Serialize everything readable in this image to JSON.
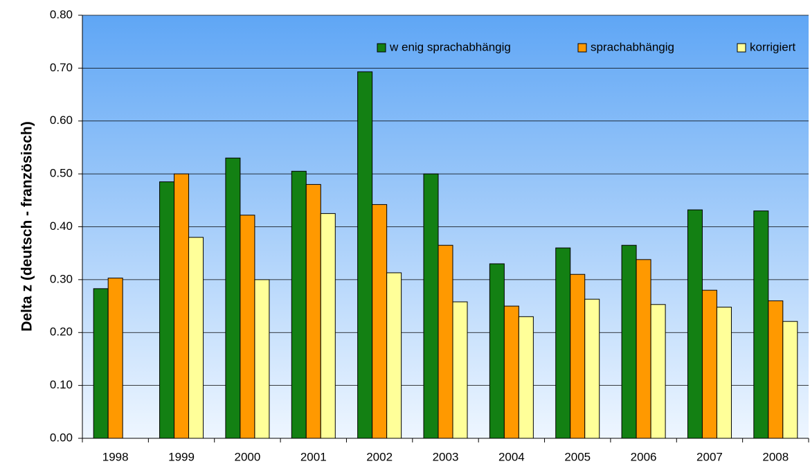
{
  "chart_data": {
    "type": "bar",
    "y_label": "Delta z (deutsch - französisch)",
    "categories": [
      "1998",
      "1999",
      "2000",
      "2001",
      "2002",
      "2003",
      "2004",
      "2005",
      "2006",
      "2007",
      "2008"
    ],
    "series": [
      {
        "name": "w enig sprachabhängig",
        "color": "#138013",
        "values": [
          0.283,
          0.485,
          0.53,
          0.505,
          0.693,
          0.5,
          0.33,
          0.36,
          0.365,
          0.432,
          0.43
        ]
      },
      {
        "name": "sprachabhängig",
        "color": "#ff9900",
        "values": [
          0.303,
          0.5,
          0.422,
          0.48,
          0.442,
          0.365,
          0.25,
          0.31,
          0.338,
          0.28,
          0.26
        ]
      },
      {
        "name": "korrigiert",
        "color": "#ffff99",
        "values": [
          null,
          0.38,
          0.3,
          0.425,
          0.313,
          0.258,
          0.23,
          0.263,
          0.253,
          0.248,
          0.221
        ]
      }
    ],
    "ylim": [
      0,
      0.8
    ],
    "yticks": [
      {
        "value": 0,
        "label": "0.00"
      },
      {
        "value": 0.1,
        "label": "0.10"
      },
      {
        "value": 0.2,
        "label": "0.20"
      },
      {
        "value": 0.3,
        "label": "0.30"
      },
      {
        "value": 0.4,
        "label": "0.40"
      },
      {
        "value": 0.5,
        "label": "0.50"
      },
      {
        "value": 0.6,
        "label": "0.60"
      },
      {
        "value": 0.7,
        "label": "0.70"
      },
      {
        "value": 0.8,
        "label": "0.80"
      }
    ],
    "grid": true,
    "legend": "top-right"
  }
}
